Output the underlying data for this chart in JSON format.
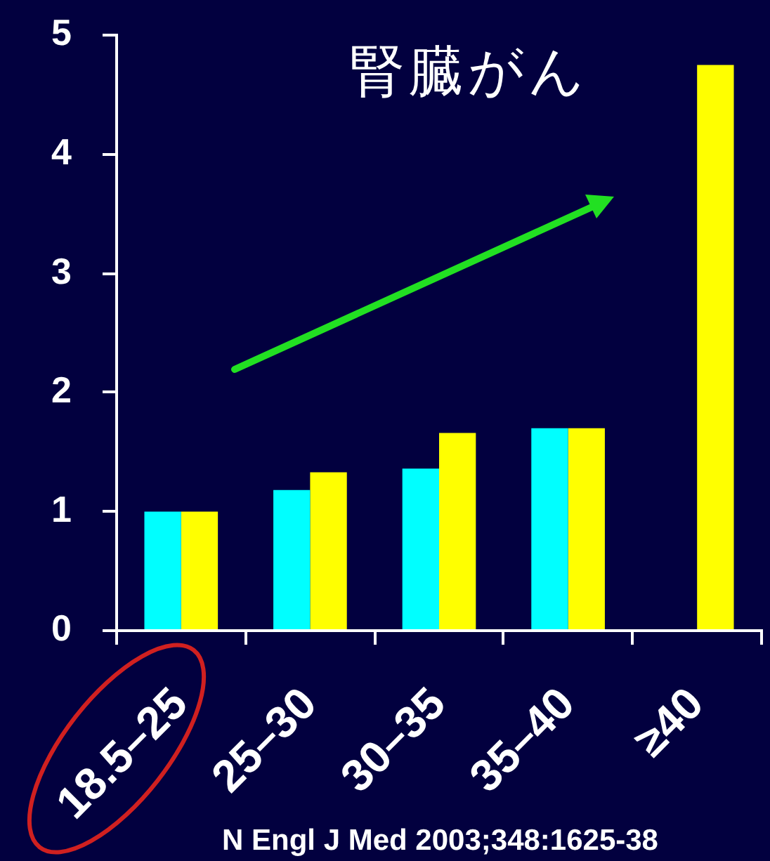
{
  "chart_data": {
    "type": "bar",
    "title": "腎臓がん",
    "annotations": [
      "N Engl J Med 2003;348:1625-38"
    ],
    "categories": [
      "18.5–25",
      "25–30",
      "30–35",
      "35–40",
      "≥40"
    ],
    "series": [
      {
        "color": "#00ffff",
        "values": [
          1.0,
          1.18,
          1.36,
          1.7,
          null
        ]
      },
      {
        "color": "#ffff00",
        "values": [
          1.0,
          1.33,
          1.66,
          1.7,
          4.75
        ]
      }
    ],
    "ylim": [
      0,
      5
    ],
    "yticks": [
      0,
      1,
      2,
      3,
      4,
      5
    ]
  }
}
